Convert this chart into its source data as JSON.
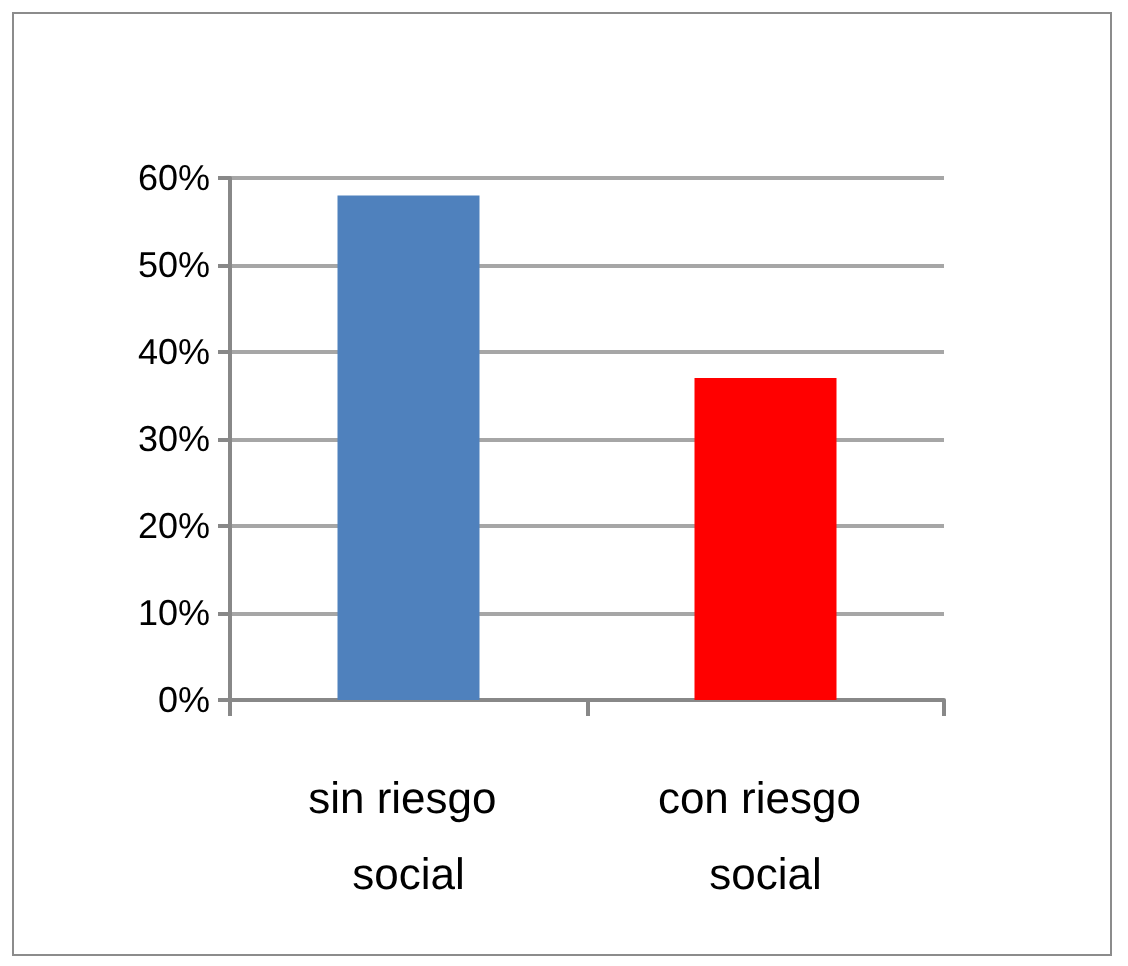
{
  "chart_data": {
    "type": "bar",
    "categories": [
      "sin riesgo social",
      "con riesgo social"
    ],
    "values": [
      58,
      37
    ],
    "colors": [
      "#4f81bd",
      "#ff0000"
    ],
    "ylim": [
      0,
      60
    ],
    "yticks": [
      {
        "value": 0,
        "label": "0%"
      },
      {
        "value": 10,
        "label": "10%"
      },
      {
        "value": 20,
        "label": "20%"
      },
      {
        "value": 30,
        "label": "30%"
      },
      {
        "value": 40,
        "label": "40%"
      },
      {
        "value": 50,
        "label": "50%"
      },
      {
        "value": 60,
        "label": "60%"
      }
    ],
    "grid": "y"
  }
}
